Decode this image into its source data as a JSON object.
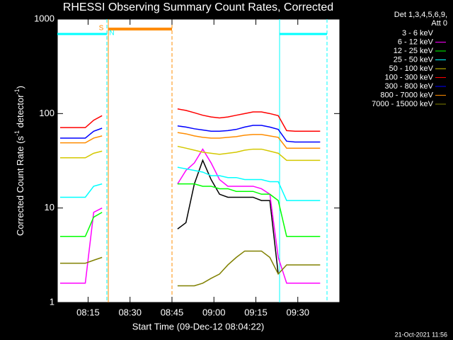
{
  "chart_data": {
    "type": "line",
    "title": "RHESSI Observing Summary Count Rates, Corrected",
    "x_label": "Start Time (09-Dec-12 08:04:22)",
    "y_label": [
      "Corrected Count Rate (s",
      "-1",
      " detector",
      "-1",
      ")"
    ],
    "legend_header": [
      "Det 1,3,4,5,6,9,",
      "Att 0"
    ],
    "footer": "21-Oct-2021 11:56",
    "flags": [
      {
        "label": "S",
        "color": "#ff8c00"
      },
      {
        "label": "N",
        "color": "#00ffff"
      }
    ],
    "log_y": true,
    "xlim": [
      "08:04",
      "09:45"
    ],
    "xticks": [
      "08:15",
      "08:30",
      "08:45",
      "09:00",
      "09:15",
      "09:30"
    ],
    "ylim": [
      1,
      1000
    ],
    "yticks": [
      1,
      10,
      100,
      1000
    ],
    "x": [
      "08:05",
      "08:08",
      "08:11",
      "08:14",
      "08:17",
      "08:20",
      "08:33",
      "08:47",
      "08:50",
      "08:53",
      "08:56",
      "08:59",
      "09:02",
      "09:05",
      "09:08",
      "09:11",
      "09:14",
      "09:17",
      "09:20",
      "09:23",
      "09:26",
      "09:29",
      "09:32",
      "09:35",
      "09:38"
    ],
    "series": [
      {
        "name": "3 - 6 keV",
        "color": "#000000",
        "values": [
          null,
          null,
          null,
          null,
          null,
          null,
          null,
          6,
          7,
          18,
          32,
          20,
          14,
          13,
          13,
          13,
          13,
          12,
          12,
          2,
          null,
          null,
          null,
          null,
          null
        ]
      },
      {
        "name": "6 - 12 keV",
        "color": "#ff00ff",
        "values": [
          1.6,
          1.6,
          1.6,
          1.6,
          9,
          10,
          null,
          18,
          25,
          30,
          42,
          30,
          20,
          17,
          17,
          17,
          17,
          16,
          14,
          3,
          1.6,
          1.6,
          1.6,
          1.6,
          1.6
        ]
      },
      {
        "name": "12 - 25 keV",
        "color": "#00ff00",
        "values": [
          5,
          5,
          5,
          5,
          8,
          9,
          null,
          18,
          18,
          18,
          17,
          17,
          16,
          16,
          15,
          15,
          15,
          14,
          14,
          12,
          5,
          5,
          5,
          5,
          5
        ]
      },
      {
        "name": "25 - 50 keV",
        "color": "#00ffff",
        "values": [
          13,
          13,
          13,
          13,
          17,
          18,
          null,
          27,
          26,
          25,
          24,
          22,
          22,
          21,
          21,
          20,
          20,
          20,
          19,
          19,
          12,
          12,
          12,
          12,
          12
        ]
      },
      {
        "name": "50 - 100 keV",
        "color": "#d4c800",
        "values": [
          34,
          34,
          34,
          34,
          38,
          40,
          null,
          45,
          43,
          41,
          39,
          38,
          37,
          38,
          39,
          41,
          42,
          42,
          40,
          38,
          32,
          32,
          32,
          32,
          32
        ]
      },
      {
        "name": "100 - 300 keV",
        "color": "#ff0000",
        "values": [
          71,
          71,
          71,
          71,
          85,
          95,
          null,
          112,
          108,
          102,
          96,
          92,
          90,
          92,
          96,
          100,
          104,
          104,
          100,
          95,
          66,
          65,
          65,
          65,
          65
        ]
      },
      {
        "name": "300 - 800 keV",
        "color": "#0000ff",
        "values": [
          55,
          55,
          55,
          55,
          65,
          70,
          null,
          74,
          72,
          69,
          67,
          65,
          65,
          66,
          68,
          72,
          75,
          75,
          72,
          68,
          51,
          50,
          50,
          50,
          50
        ]
      },
      {
        "name": "800 - 7000 keV",
        "color": "#ff8c00",
        "values": [
          49,
          49,
          49,
          49,
          55,
          58,
          null,
          63,
          61,
          58,
          56,
          55,
          55,
          56,
          57,
          59,
          60,
          60,
          58,
          56,
          43,
          43,
          43,
          43,
          43
        ]
      },
      {
        "name": "7000 - 15000 keV",
        "color": "#808000",
        "values": [
          2.6,
          2.6,
          2.6,
          2.6,
          2.8,
          3,
          null,
          1.5,
          1.5,
          1.5,
          1.6,
          1.8,
          2,
          2.5,
          3,
          3.5,
          3.5,
          3.5,
          3,
          2,
          2.5,
          2.5,
          2.5,
          2.5,
          2.5
        ]
      }
    ]
  }
}
